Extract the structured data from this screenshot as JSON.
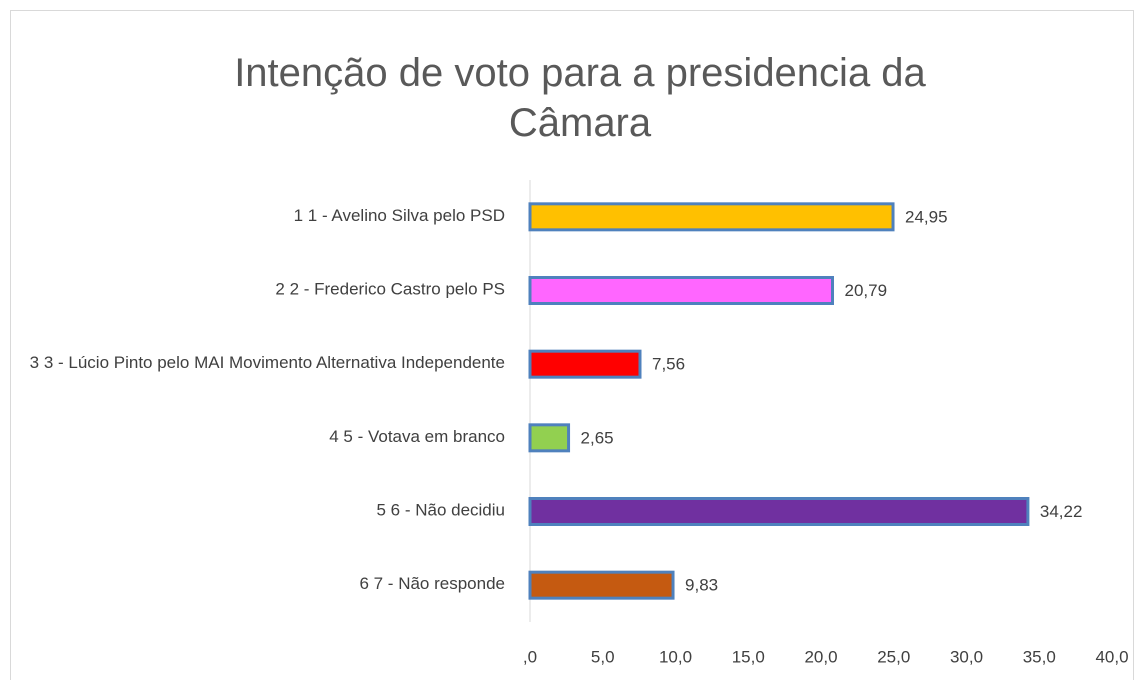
{
  "chart_data": {
    "type": "bar",
    "orientation": "horizontal",
    "title": "Intenção de voto para a presidencia da Câmara",
    "categories": [
      "1 1 - Avelino Silva pelo PSD",
      "2 2 - Frederico Castro pelo PS",
      "3 3 - Lúcio Pinto pelo MAI Movimento Alternativa Independente",
      "4 5 - Votava em branco",
      "5 6 - Não decidiu",
      "6 7 - Não responde"
    ],
    "values": [
      24.95,
      20.79,
      7.56,
      2.65,
      34.22,
      9.83
    ],
    "value_labels": [
      "24,95",
      "20,79",
      "7,56",
      "2,65",
      "34,22",
      "9,83"
    ],
    "colors": [
      "#ffc000",
      "#ff66ff",
      "#ff0000",
      "#92d050",
      "#7030a0",
      "#c55a11"
    ],
    "xlim": [
      0,
      40
    ],
    "xticks": [
      {
        "value": 0,
        "label": ",0"
      },
      {
        "value": 5,
        "label": "5,0"
      },
      {
        "value": 10,
        "label": "10,0"
      },
      {
        "value": 15,
        "label": "15,0"
      },
      {
        "value": 20,
        "label": "20,0"
      },
      {
        "value": 25,
        "label": "25,0"
      },
      {
        "value": 30,
        "label": "30,0"
      },
      {
        "value": 35,
        "label": "35,0"
      },
      {
        "value": 40,
        "label": "40,0"
      }
    ],
    "grid": false
  }
}
